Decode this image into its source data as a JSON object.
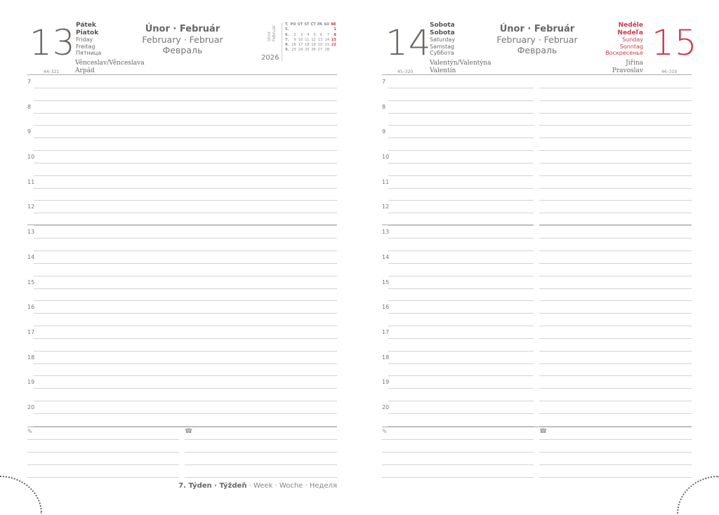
{
  "left": {
    "day_number": "13",
    "day_names": [
      "Pátek",
      "Piatok",
      "Friday",
      "Freitag",
      "Пятница"
    ],
    "month": {
      "cz_sk": "Únor · Február",
      "en_de": "February · Februar",
      "ru": "Февраль"
    },
    "name_days": [
      "Věnceslav/Věnceslava",
      "Arpád"
    ],
    "day_code": "44–321",
    "year": "2026",
    "mini_calendar": {
      "vertical_label": [
        "Únor",
        "Február"
      ],
      "header": [
        "T.",
        "PO",
        "ÚT",
        "ST",
        "ČT",
        "PÁ",
        "SO",
        "NE"
      ],
      "rows": [
        [
          "5.",
          "",
          "",
          "",
          "",
          "",
          "",
          "1"
        ],
        [
          "6.",
          "2",
          "3",
          "4",
          "5",
          "6",
          "7",
          "8"
        ],
        [
          "7.",
          "9",
          "10",
          "11",
          "12",
          "13",
          "14",
          "15"
        ],
        [
          "8.",
          "16",
          "17",
          "18",
          "19",
          "20",
          "21",
          "22"
        ],
        [
          "9.",
          "23",
          "24",
          "25",
          "26",
          "27",
          "28",
          ""
        ]
      ]
    }
  },
  "right": {
    "day_number": "14",
    "day_names": [
      "Sobota",
      "Sobota",
      "Saturday",
      "Samstag",
      "Суббота"
    ],
    "month": {
      "cz_sk": "Únor · Február",
      "en_de": "February · Februar",
      "ru": "Февраль"
    },
    "name_days": [
      "Valentýn/Valentýna",
      "Valentín"
    ],
    "day_code": "45–320",
    "sunday": {
      "day_number": "15",
      "day_names": [
        "Neděle",
        "Nedeľa",
        "Sunday",
        "Sonntag",
        "Воскресенье"
      ],
      "name_days": [
        "Jiřina",
        "Pravoslav"
      ],
      "day_code": "46–319"
    }
  },
  "hours": [
    "7",
    "8",
    "9",
    "10",
    "11",
    "12",
    "13",
    "14",
    "15",
    "16",
    "17",
    "18",
    "19",
    "20"
  ],
  "icons": {
    "notes": "pencil-icon",
    "phone": "telephone-icon"
  },
  "footer": {
    "week_bold": "7. Týden · Týždeň",
    "week_rest": " · Week · Woche · Неделя"
  },
  "colors": {
    "accent_red": "#c83a4e",
    "text": "#6f6a66"
  }
}
